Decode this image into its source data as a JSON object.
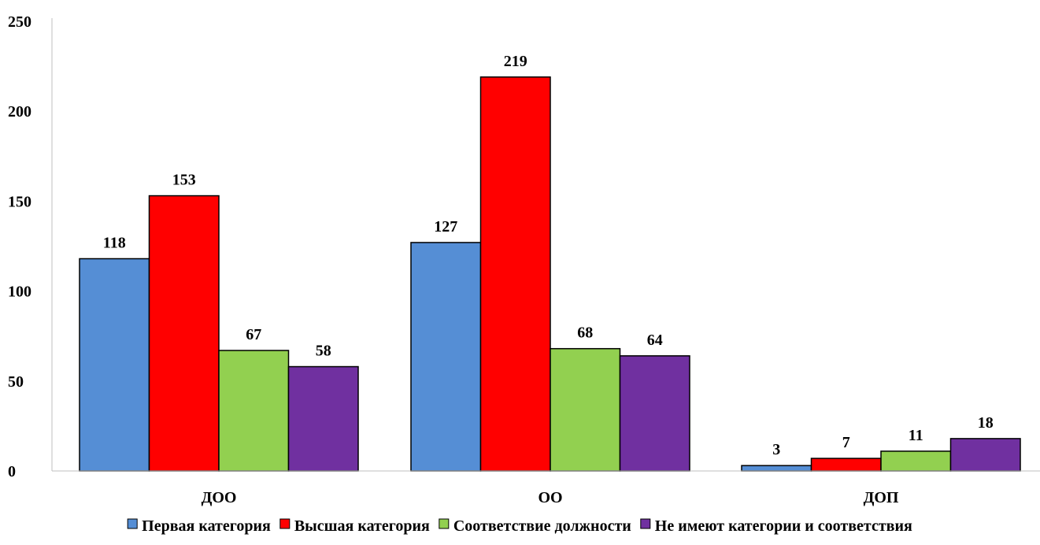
{
  "chart_data": {
    "type": "bar",
    "categories": [
      "ДОО",
      "ОО",
      "ДОП"
    ],
    "series": [
      {
        "name": "Первая категория",
        "color": "#558ED5",
        "values": [
          118,
          127,
          3
        ]
      },
      {
        "name": "Высшая категория",
        "color": "#FF0000",
        "values": [
          153,
          219,
          7
        ]
      },
      {
        "name": "Соответствие должности",
        "color": "#92D050",
        "values": [
          67,
          68,
          11
        ]
      },
      {
        "name": "Не имеют категории и соответствия",
        "color": "#7030A0",
        "values": [
          58,
          64,
          18
        ]
      }
    ],
    "ylim": [
      0,
      250
    ],
    "yticks": [
      0,
      50,
      100,
      150,
      200,
      250
    ],
    "grid": false,
    "legend": "bottom"
  }
}
